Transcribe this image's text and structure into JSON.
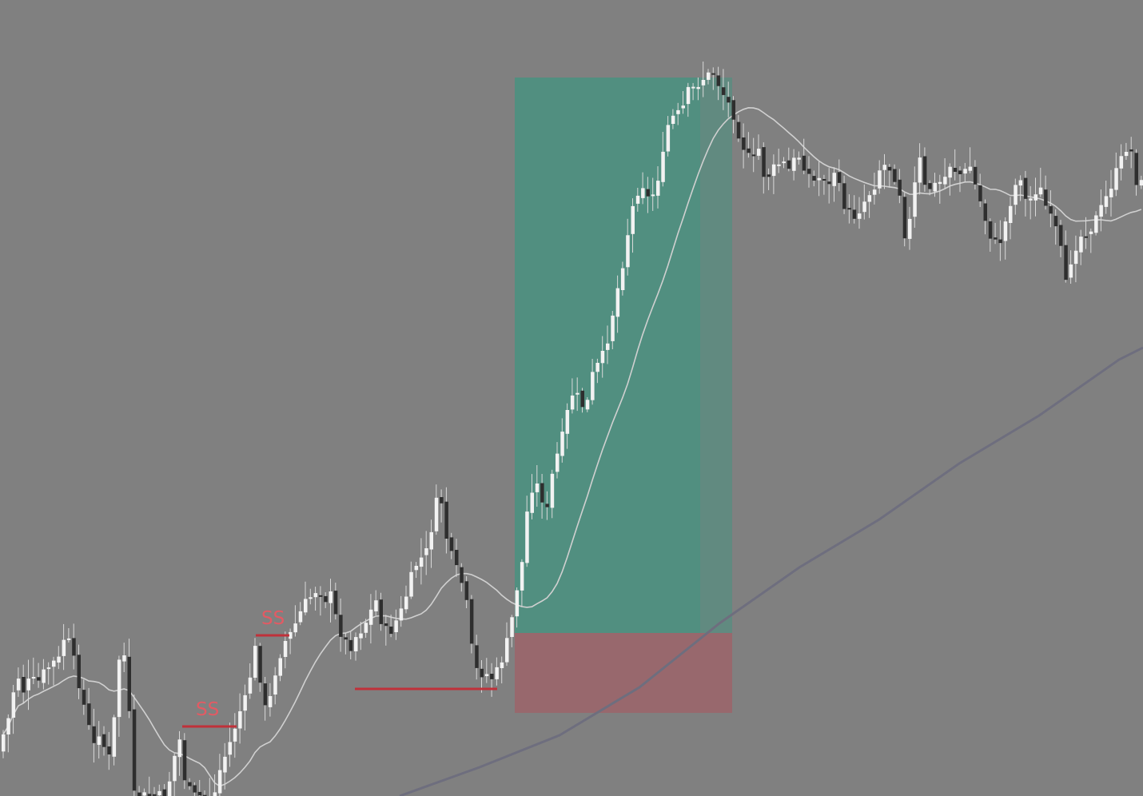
{
  "chart_data": {
    "type": "candlestick",
    "title": "",
    "xlabel": "",
    "ylabel": "",
    "grid": false,
    "legend": "none",
    "colors": {
      "background": "#808080",
      "bull_body": "#f2f2f2",
      "bear_body": "#2e2e2e",
      "wick": "#d9d9d9",
      "fast_ma": "#d0d0d0",
      "slow_ma": "#6e6e7e",
      "profit_zone": "#2a9a80",
      "loss_zone": "#a85860",
      "liquidity_line": "#c0313a",
      "label": "#e35a63"
    },
    "annotations": {
      "liquidity_labels": [
        {
          "text": "SS"
        },
        {
          "text": "SS"
        }
      ]
    },
    "trade": {
      "direction": "long",
      "entry": 792,
      "stop": 892,
      "target": 97
    },
    "waypoints": [
      [
        0,
        940
      ],
      [
        8,
        920
      ],
      [
        16,
        895
      ],
      [
        25,
        840
      ],
      [
        33,
        865
      ],
      [
        42,
        850
      ],
      [
        51,
        855
      ],
      [
        60,
        840
      ],
      [
        69,
        830
      ],
      [
        78,
        825
      ],
      [
        86,
        790
      ],
      [
        95,
        820
      ],
      [
        104,
        860
      ],
      [
        113,
        900
      ],
      [
        121,
        935
      ],
      [
        130,
        910
      ],
      [
        139,
        960
      ],
      [
        147,
        900
      ],
      [
        156,
        790
      ],
      [
        164,
        860
      ],
      [
        171,
        996
      ],
      [
        180,
        996
      ],
      [
        196,
        996
      ],
      [
        212,
        996
      ],
      [
        228,
        920
      ],
      [
        236,
        980
      ],
      [
        245,
        996
      ],
      [
        260,
        996
      ],
      [
        272,
        996
      ],
      [
        280,
        960
      ],
      [
        290,
        935
      ],
      [
        298,
        910
      ],
      [
        306,
        885
      ],
      [
        314,
        870
      ],
      [
        322,
        805
      ],
      [
        330,
        850
      ],
      [
        338,
        900
      ],
      [
        346,
        850
      ],
      [
        354,
        820
      ],
      [
        362,
        800
      ],
      [
        370,
        790
      ],
      [
        378,
        770
      ],
      [
        386,
        755
      ],
      [
        394,
        745
      ],
      [
        402,
        735
      ],
      [
        410,
        750
      ],
      [
        418,
        745
      ],
      [
        426,
        780
      ],
      [
        434,
        800
      ],
      [
        442,
        810
      ],
      [
        450,
        795
      ],
      [
        458,
        785
      ],
      [
        466,
        770
      ],
      [
        474,
        750
      ],
      [
        482,
        780
      ],
      [
        490,
        795
      ],
      [
        498,
        780
      ],
      [
        506,
        765
      ],
      [
        514,
        740
      ],
      [
        522,
        710
      ],
      [
        530,
        700
      ],
      [
        538,
        690
      ],
      [
        546,
        650
      ],
      [
        554,
        610
      ],
      [
        562,
        670
      ],
      [
        570,
        700
      ],
      [
        578,
        720
      ],
      [
        586,
        740
      ],
      [
        594,
        810
      ],
      [
        602,
        845
      ],
      [
        610,
        840
      ],
      [
        618,
        850
      ],
      [
        626,
        840
      ],
      [
        634,
        820
      ],
      [
        642,
        790
      ],
      [
        650,
        740
      ],
      [
        658,
        700
      ],
      [
        665,
        625
      ],
      [
        673,
        600
      ],
      [
        681,
        620
      ],
      [
        689,
        640
      ],
      [
        697,
        580
      ],
      [
        705,
        560
      ],
      [
        713,
        520
      ],
      [
        721,
        490
      ],
      [
        729,
        500
      ],
      [
        737,
        515
      ],
      [
        745,
        470
      ],
      [
        753,
        455
      ],
      [
        761,
        440
      ],
      [
        769,
        400
      ],
      [
        777,
        360
      ],
      [
        785,
        320
      ],
      [
        793,
        270
      ],
      [
        801,
        240
      ],
      [
        809,
        230
      ],
      [
        817,
        255
      ],
      [
        825,
        230
      ],
      [
        833,
        200
      ],
      [
        841,
        150
      ],
      [
        849,
        145
      ],
      [
        857,
        140
      ],
      [
        865,
        115
      ],
      [
        873,
        110
      ],
      [
        881,
        100
      ],
      [
        889,
        95
      ],
      [
        897,
        90
      ],
      [
        905,
        110
      ],
      [
        913,
        125
      ],
      [
        921,
        140
      ],
      [
        929,
        170
      ],
      [
        937,
        190
      ],
      [
        945,
        205
      ],
      [
        953,
        185
      ],
      [
        961,
        225
      ],
      [
        969,
        215
      ],
      [
        977,
        205
      ],
      [
        985,
        205
      ],
      [
        993,
        215
      ],
      [
        1001,
        190
      ],
      [
        1009,
        205
      ],
      [
        1017,
        220
      ],
      [
        1025,
        230
      ],
      [
        1033,
        215
      ],
      [
        1041,
        235
      ],
      [
        1049,
        210
      ],
      [
        1057,
        250
      ],
      [
        1065,
        265
      ],
      [
        1073,
        270
      ],
      [
        1081,
        260
      ],
      [
        1089,
        245
      ],
      [
        1097,
        235
      ],
      [
        1105,
        210
      ],
      [
        1113,
        205
      ],
      [
        1121,
        215
      ],
      [
        1129,
        235
      ],
      [
        1137,
        300
      ],
      [
        1145,
        265
      ],
      [
        1153,
        190
      ],
      [
        1161,
        235
      ],
      [
        1169,
        235
      ],
      [
        1177,
        230
      ],
      [
        1185,
        225
      ],
      [
        1193,
        205
      ],
      [
        1201,
        215
      ],
      [
        1209,
        220
      ],
      [
        1217,
        205
      ],
      [
        1225,
        235
      ],
      [
        1233,
        260
      ],
      [
        1241,
        290
      ],
      [
        1249,
        305
      ],
      [
        1257,
        300
      ],
      [
        1265,
        265
      ],
      [
        1273,
        235
      ],
      [
        1281,
        220
      ],
      [
        1289,
        260
      ],
      [
        1297,
        240
      ],
      [
        1305,
        235
      ],
      [
        1313,
        260
      ],
      [
        1321,
        280
      ],
      [
        1329,
        295
      ],
      [
        1337,
        360
      ],
      [
        1345,
        320
      ],
      [
        1353,
        300
      ],
      [
        1361,
        290
      ],
      [
        1369,
        285
      ],
      [
        1377,
        270
      ],
      [
        1385,
        255
      ],
      [
        1393,
        235
      ],
      [
        1401,
        215
      ],
      [
        1409,
        195
      ],
      [
        1417,
        175
      ],
      [
        1425,
        225
      ],
      [
        1430,
        230
      ]
    ],
    "slow_ma_points": [
      [
        500,
        996
      ],
      [
        600,
        960
      ],
      [
        700,
        920
      ],
      [
        800,
        860
      ],
      [
        900,
        780
      ],
      [
        1000,
        710
      ],
      [
        1100,
        650
      ],
      [
        1200,
        580
      ],
      [
        1300,
        520
      ],
      [
        1400,
        450
      ],
      [
        1430,
        435
      ]
    ],
    "liquidity_lines": [
      {
        "x1": 228,
        "x2": 296,
        "y": 909
      },
      {
        "x1": 320,
        "x2": 362,
        "y": 795
      },
      {
        "x1": 444,
        "x2": 622,
        "y": 862
      }
    ]
  }
}
